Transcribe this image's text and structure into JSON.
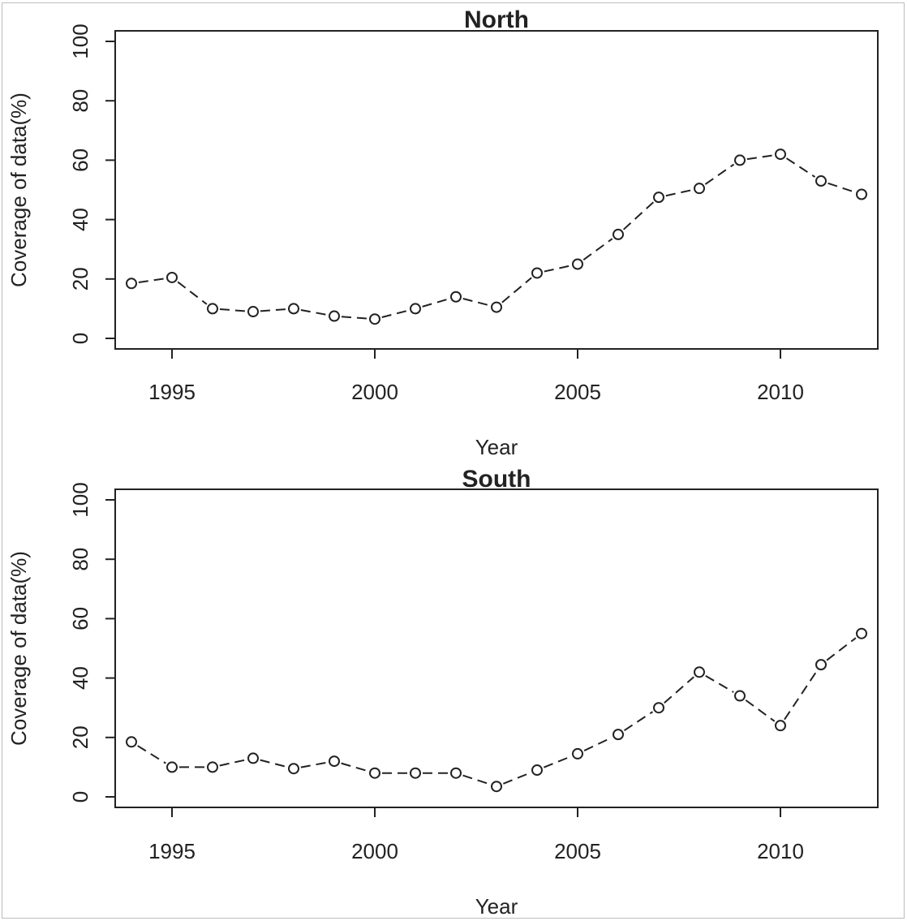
{
  "chart_data": [
    {
      "type": "line",
      "title": "North",
      "xlabel": "Year",
      "ylabel": "Coverage of data(%)",
      "x": [
        1994,
        1995,
        1996,
        1997,
        1998,
        1999,
        2000,
        2001,
        2002,
        2003,
        2004,
        2005,
        2006,
        2007,
        2008,
        2009,
        2010,
        2011,
        2012
      ],
      "series": [
        {
          "values": [
            18.5,
            20.5,
            10,
            9,
            10,
            7.5,
            6.5,
            10,
            14,
            10.5,
            22,
            25,
            35,
            47.5,
            50.5,
            60,
            62,
            53,
            48.5
          ]
        }
      ],
      "xticks": [
        "1995",
        "2000",
        "2005",
        "2010"
      ],
      "yticks": [
        "0",
        "20",
        "40",
        "60",
        "80",
        "100"
      ],
      "xlim": [
        1993.6,
        2012.4
      ],
      "ylim": [
        0,
        100
      ],
      "grid": false,
      "marker": "open-circle",
      "line_style": "dashed",
      "colors": {
        "line": "#222222",
        "axis": "#222222",
        "text": "#222222"
      }
    },
    {
      "type": "line",
      "title": "South",
      "xlabel": "Year",
      "ylabel": "Coverage of data(%)",
      "x": [
        1994,
        1995,
        1996,
        1997,
        1998,
        1999,
        2000,
        2001,
        2002,
        2003,
        2004,
        2005,
        2006,
        2007,
        2008,
        2009,
        2010,
        2011,
        2012
      ],
      "series": [
        {
          "values": [
            18.5,
            10,
            10,
            13,
            9.5,
            12,
            8,
            8,
            8,
            3.5,
            9,
            14.5,
            21,
            30,
            42,
            34,
            24,
            44.5,
            55
          ]
        }
      ],
      "xticks": [
        "1995",
        "2000",
        "2005",
        "2010"
      ],
      "yticks": [
        "0",
        "20",
        "40",
        "60",
        "80",
        "100"
      ],
      "xlim": [
        1993.6,
        2012.4
      ],
      "ylim": [
        0,
        100
      ],
      "grid": false,
      "marker": "open-circle",
      "line_style": "dashed",
      "colors": {
        "line": "#222222",
        "axis": "#222222",
        "text": "#222222"
      }
    }
  ]
}
